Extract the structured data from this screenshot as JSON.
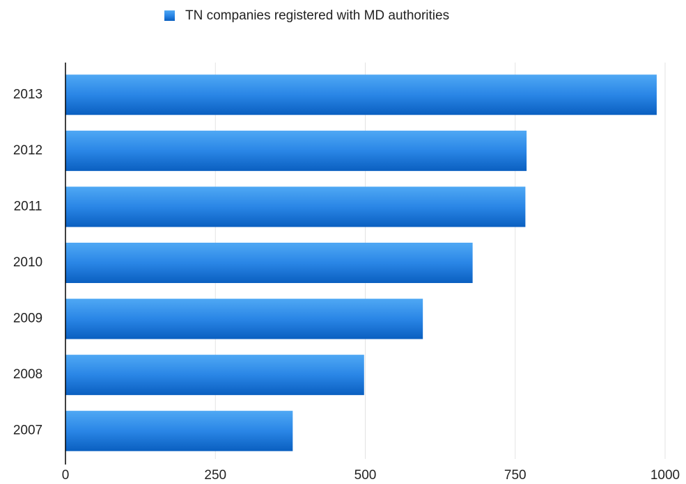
{
  "chart_data": {
    "type": "hbar",
    "categories": [
      "2013",
      "2012",
      "2011",
      "2010",
      "2009",
      "2008",
      "2007"
    ],
    "series": [
      {
        "name": "TN companies registered with MD authorities",
        "color": "#1f7fe0",
        "values": [
          986,
          769,
          767,
          679,
          596,
          498,
          379
        ]
      }
    ],
    "xlim": [
      0,
      1000
    ],
    "xticks": [
      0,
      250,
      500,
      750,
      1000
    ],
    "grid": true,
    "legend": "top"
  }
}
